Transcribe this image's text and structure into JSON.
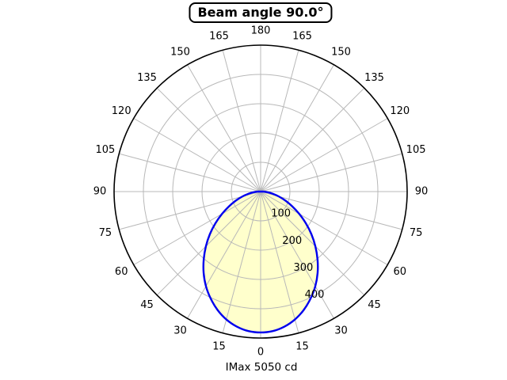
{
  "chart_data": {
    "type": "polar_line",
    "title": "Beam angle 90.0°",
    "footer_label": "IMax 5050 cd",
    "imax_cd": 5050,
    "beam_angle_deg": 90.0,
    "orientation": "0 degrees at bottom, 180 degrees at top, angles mirrored on both sides",
    "grid": true,
    "r_axis": {
      "min": 0,
      "max": 500,
      "ring_step": 100,
      "rings": [
        100,
        200,
        300,
        400,
        500
      ],
      "tick_labels": [
        {
          "value": 100,
          "label": "100"
        },
        {
          "value": 200,
          "label": "200"
        },
        {
          "value": 300,
          "label": "300"
        },
        {
          "value": 400,
          "label": "400"
        }
      ],
      "label_angle_deg": 22.5
    },
    "theta_axis": {
      "spoke_step_deg": 15,
      "labels": [
        {
          "angle": -165,
          "label": "165"
        },
        {
          "angle": -150,
          "label": "150"
        },
        {
          "angle": -135,
          "label": "135"
        },
        {
          "angle": -120,
          "label": "120"
        },
        {
          "angle": -105,
          "label": "105"
        },
        {
          "angle": -90,
          "label": "90"
        },
        {
          "angle": -75,
          "label": "75"
        },
        {
          "angle": -60,
          "label": "60"
        },
        {
          "angle": -45,
          "label": "45"
        },
        {
          "angle": -30,
          "label": "30"
        },
        {
          "angle": -15,
          "label": "15"
        },
        {
          "angle": 0,
          "label": "0"
        },
        {
          "angle": 15,
          "label": "15"
        },
        {
          "angle": 30,
          "label": "30"
        },
        {
          "angle": 45,
          "label": "45"
        },
        {
          "angle": 60,
          "label": "60"
        },
        {
          "angle": 75,
          "label": "75"
        },
        {
          "angle": 90,
          "label": "90"
        },
        {
          "angle": 105,
          "label": "105"
        },
        {
          "angle": 120,
          "label": "120"
        },
        {
          "angle": 135,
          "label": "135"
        },
        {
          "angle": 150,
          "label": "150"
        },
        {
          "angle": 165,
          "label": "165"
        },
        {
          "angle": 180,
          "label": "180"
        }
      ]
    },
    "series": [
      {
        "name": "luminous_intensity",
        "symmetric_about_0deg": true,
        "angles_deg": [
          0,
          5,
          10,
          15,
          20,
          25,
          30,
          35,
          40,
          45,
          50,
          55,
          60,
          65,
          70,
          75,
          80,
          85,
          90
        ],
        "values": [
          481,
          478,
          468,
          452,
          430,
          403,
          373,
          339,
          302,
          264,
          226,
          188,
          152,
          119,
          90,
          64,
          42,
          24,
          10
        ]
      }
    ],
    "colors": {
      "curve": "#0000ee",
      "fill": "#ffffcc",
      "grid": "#b8b8b8",
      "axis": "#000000",
      "background": "#ffffff",
      "text": "#000000"
    }
  }
}
